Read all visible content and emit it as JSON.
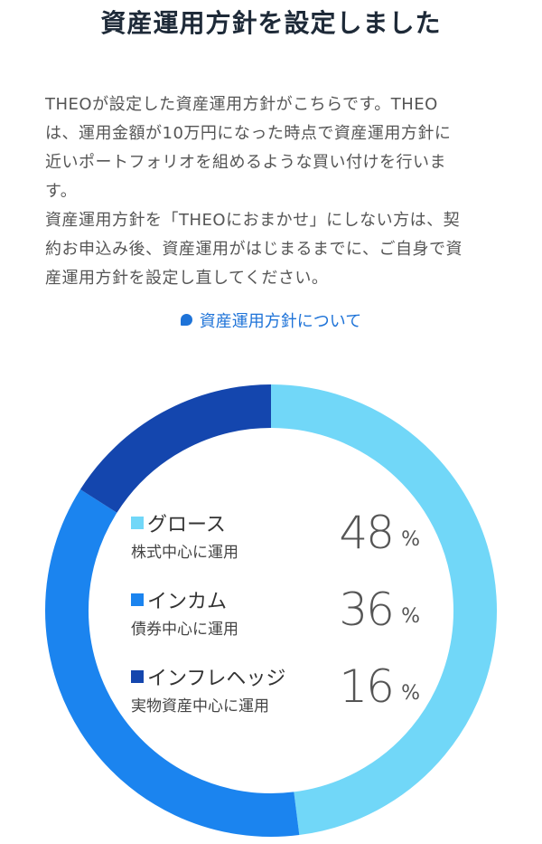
{
  "page": {
    "title": "資産運用方針を設定しました",
    "description_lines": [
      "THEOが設定した資産運用方針がこちらです。THEO",
      "は、運用金額が10万円になった時点で資産運用方針に",
      "近いポートフォリオを組めるような買い付けを行いま",
      "す。",
      "資産運用方針を「THEOにおまかせ」にしない方は、契",
      "約お申込み後、資産運用がはじまるまでに、ご自身で資",
      "産運用方針を設定し直してください。"
    ],
    "policy_link_label": "資産運用方針について",
    "policy_link_icon": "speech-bubble-icon"
  },
  "legend": [
    {
      "name": "グロース",
      "sub": "株式中心に運用",
      "pct": "48",
      "unit": "%",
      "color": "#71d7f8"
    },
    {
      "name": "インカム",
      "sub": "債券中心に運用",
      "pct": "36",
      "unit": "%",
      "color": "#1b84ef"
    },
    {
      "name": "インフレヘッジ",
      "sub": "実物資産中心に運用",
      "pct": "16",
      "unit": "%",
      "color": "#1446ae"
    }
  ],
  "chart_data": {
    "type": "pie",
    "donut": true,
    "categories": [
      "グロース",
      "インカム",
      "インフレヘッジ"
    ],
    "values": [
      48,
      36,
      16
    ],
    "colors": [
      "#71d7f8",
      "#1b84ef",
      "#1446ae"
    ],
    "start": "top",
    "direction": "clockwise"
  }
}
